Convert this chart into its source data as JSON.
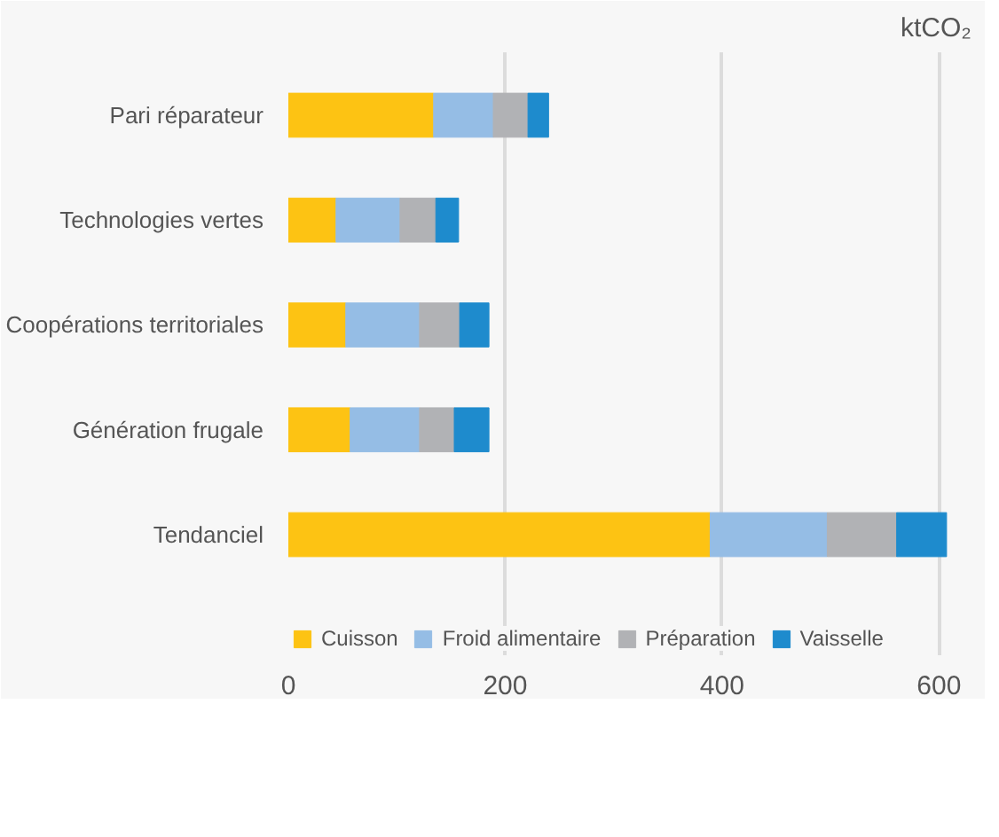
{
  "chart_data": {
    "type": "bar",
    "orientation": "horizontal",
    "stacked": true,
    "xlabel": "ktCO₂",
    "categories": [
      "Pari réparateur",
      "Technologies vertes",
      "Coopérations territoriales",
      "Génération frugale",
      "Tendanciel"
    ],
    "series": [
      {
        "name": "Cuisson",
        "color": "#fdc313",
        "values": [
          134,
          44,
          53,
          57,
          389
        ]
      },
      {
        "name": "Froid alimentaire",
        "color": "#95bde5",
        "values": [
          55,
          59,
          68,
          64,
          108
        ]
      },
      {
        "name": "Préparation",
        "color": "#b1b2b5",
        "values": [
          32,
          33,
          37,
          32,
          64
        ]
      },
      {
        "name": "Vaisselle",
        "color": "#1e8bcd",
        "values": [
          19,
          21,
          27,
          32,
          46
        ]
      }
    ],
    "xlim": [
      0,
      630
    ],
    "xticks": [
      0,
      200,
      400,
      600
    ],
    "grid": "x",
    "legend": "bottom"
  }
}
